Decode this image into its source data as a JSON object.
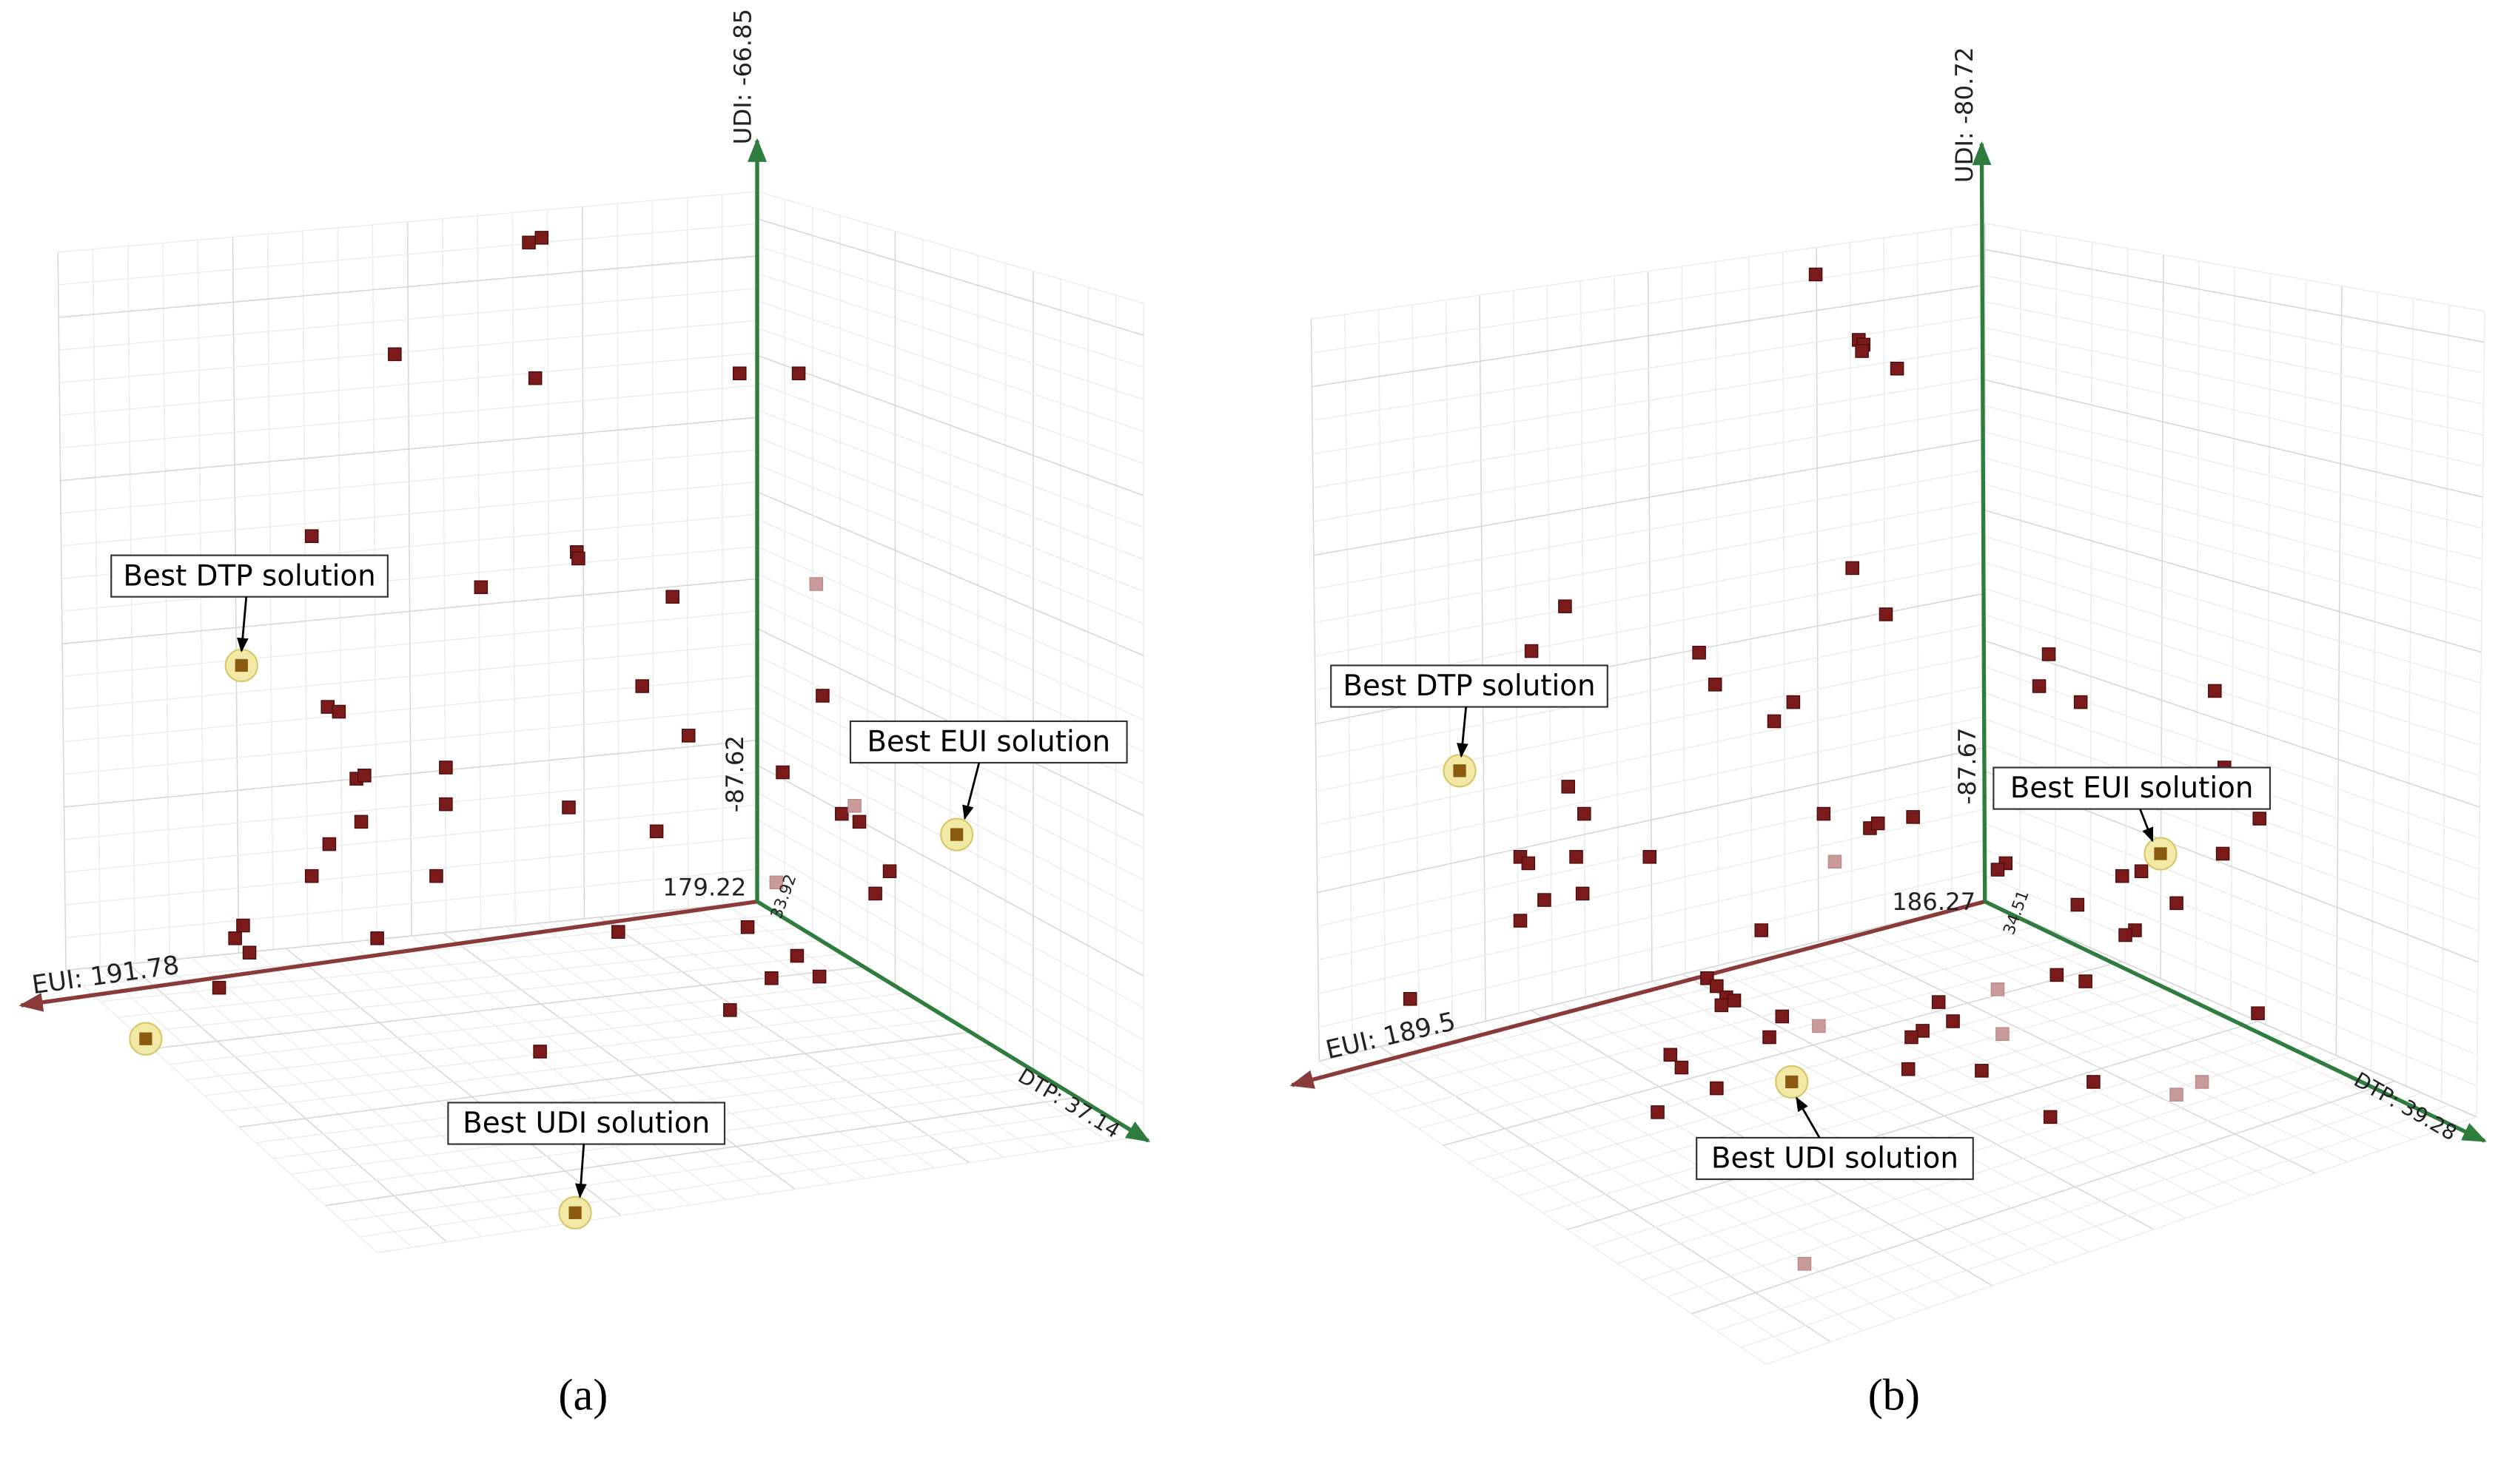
{
  "panels": [
    {
      "udi_axis": "UDI: -66.85",
      "udi_min": "-87.62",
      "eui_min": "179.22",
      "dtp_min": "33.92",
      "eui_axis": "EUI: 191.78",
      "dtp_axis": "DTP: 37.14",
      "annotations": [
        "Best DTP solution",
        "Best EUI solution",
        "Best UDI solution"
      ],
      "caption": "(a)"
    },
    {
      "udi_axis": "UDI: -80.72",
      "udi_min": "-87.67",
      "eui_min": "186.27",
      "dtp_min": "34.51",
      "eui_axis": "EUI: 189.5",
      "dtp_axis": "DTP: 39.28",
      "annotations": [
        "Best DTP solution",
        "Best EUI solution",
        "Best UDI solution"
      ],
      "caption": "(b)"
    }
  ]
}
